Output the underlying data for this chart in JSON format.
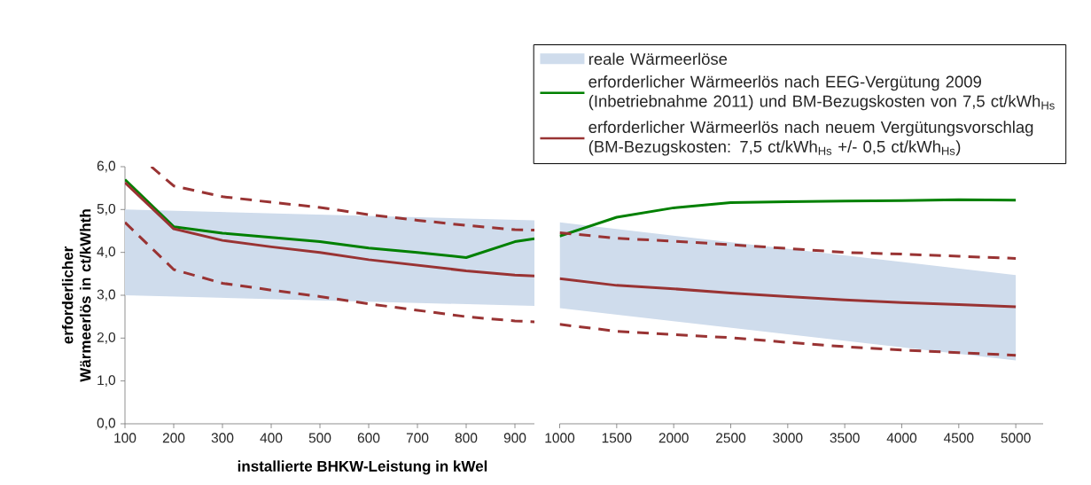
{
  "chart_data": [
    {
      "type": "line",
      "xlabel": "installierte BHKW-Leistung in kWel",
      "ylabel": "erforderlicher Wärmeerlös in ct/kWhth",
      "xlim": [
        100,
        940
      ],
      "ylim": [
        0,
        6
      ],
      "xticks": [
        100,
        200,
        300,
        400,
        500,
        600,
        700,
        800,
        900
      ],
      "yticks": [
        {
          "value": 0,
          "label": "0,0"
        },
        {
          "value": 1,
          "label": "1,0"
        },
        {
          "value": 2,
          "label": "2,0"
        },
        {
          "value": 3,
          "label": "3,0"
        },
        {
          "value": 4,
          "label": "4,0"
        },
        {
          "value": 5,
          "label": "5,0"
        },
        {
          "value": 6,
          "label": "6,0"
        }
      ],
      "x": [
        100,
        200,
        300,
        400,
        500,
        600,
        700,
        800,
        900,
        940
      ],
      "grid": false,
      "marker": "none",
      "series": [
        {
          "type": "area",
          "color": "#cfdcec",
          "x": [
            100,
            940
          ],
          "values": [
            null,
            null
          ],
          "lower": [
            3.0,
            2.75
          ],
          "upper": [
            5.0,
            4.75
          ]
        },
        {
          "color": "#008000",
          "line_style": "solid",
          "values": [
            5.7,
            4.6,
            4.45,
            4.35,
            4.25,
            4.1,
            4.0,
            3.88,
            4.25,
            4.32
          ]
        },
        {
          "color": "#993333",
          "line_style": "solid",
          "values": [
            5.63,
            4.55,
            4.28,
            4.13,
            4.0,
            3.83,
            3.7,
            3.57,
            3.47,
            3.45
          ]
        },
        {
          "color": "#993333",
          "line_style": "dashed",
          "x": [
            154,
            200,
            300,
            400,
            500,
            600,
            700,
            800,
            900,
            940
          ],
          "values": [
            6.0,
            5.55,
            5.3,
            5.17,
            5.05,
            4.88,
            4.75,
            4.63,
            4.53,
            4.52
          ]
        },
        {
          "color": "#993333",
          "line_style": "dashed",
          "values": [
            4.7,
            3.6,
            3.28,
            3.12,
            2.97,
            2.8,
            2.65,
            2.5,
            2.4,
            2.38
          ]
        }
      ]
    },
    {
      "type": "line",
      "xlim": [
        1000,
        5240
      ],
      "ylim": [
        0,
        6
      ],
      "xticks": [
        1000,
        1500,
        2000,
        2500,
        3000,
        3500,
        4000,
        4500,
        5000
      ],
      "tick_labels": "x",
      "x": [
        1000,
        1500,
        2000,
        2500,
        3000,
        3500,
        4000,
        4500,
        5000
      ],
      "grid": false,
      "marker": "none",
      "legend": "top",
      "series": [
        {
          "type": "area",
          "name": "reale Wärmeerlöse",
          "color": "#cfdcec",
          "x": [
            1000,
            5000
          ],
          "values": [
            null,
            null
          ],
          "lower": [
            2.7,
            1.48
          ],
          "upper": [
            4.7,
            3.47
          ]
        },
        {
          "name": "erforderlicher Wärmeerlös nach EEG-Vergütung 2009 (Inbetriebnahme 2011) und BM-Bezugskosten von 7,5 ct/kWh$_{Hs}$",
          "color": "#008000",
          "line_style": "solid",
          "values": [
            4.38,
            4.82,
            5.04,
            5.16,
            5.18,
            5.2,
            5.21,
            5.23,
            5.22
          ]
        },
        {
          "name": "erforderlicher Wärmeerlös nach neuem Vergütungsvorschlag (BM-Bezugskosten: 7,5 ct/kWh$_{Hs}$ +/- 0,5 ct/kWh$_{Hs}$)",
          "color": "#993333",
          "line_style": "solid",
          "values": [
            3.39,
            3.23,
            3.15,
            3.05,
            2.97,
            2.89,
            2.83,
            2.78,
            2.73
          ]
        },
        {
          "color": "#993333",
          "line_style": "dashed",
          "values": [
            4.46,
            4.33,
            4.26,
            4.18,
            4.09,
            4.0,
            3.96,
            3.91,
            3.86
          ]
        },
        {
          "color": "#993333",
          "line_style": "dashed",
          "values": [
            2.32,
            2.16,
            2.08,
            2.01,
            1.9,
            1.8,
            1.72,
            1.66,
            1.6
          ]
        }
      ]
    }
  ]
}
